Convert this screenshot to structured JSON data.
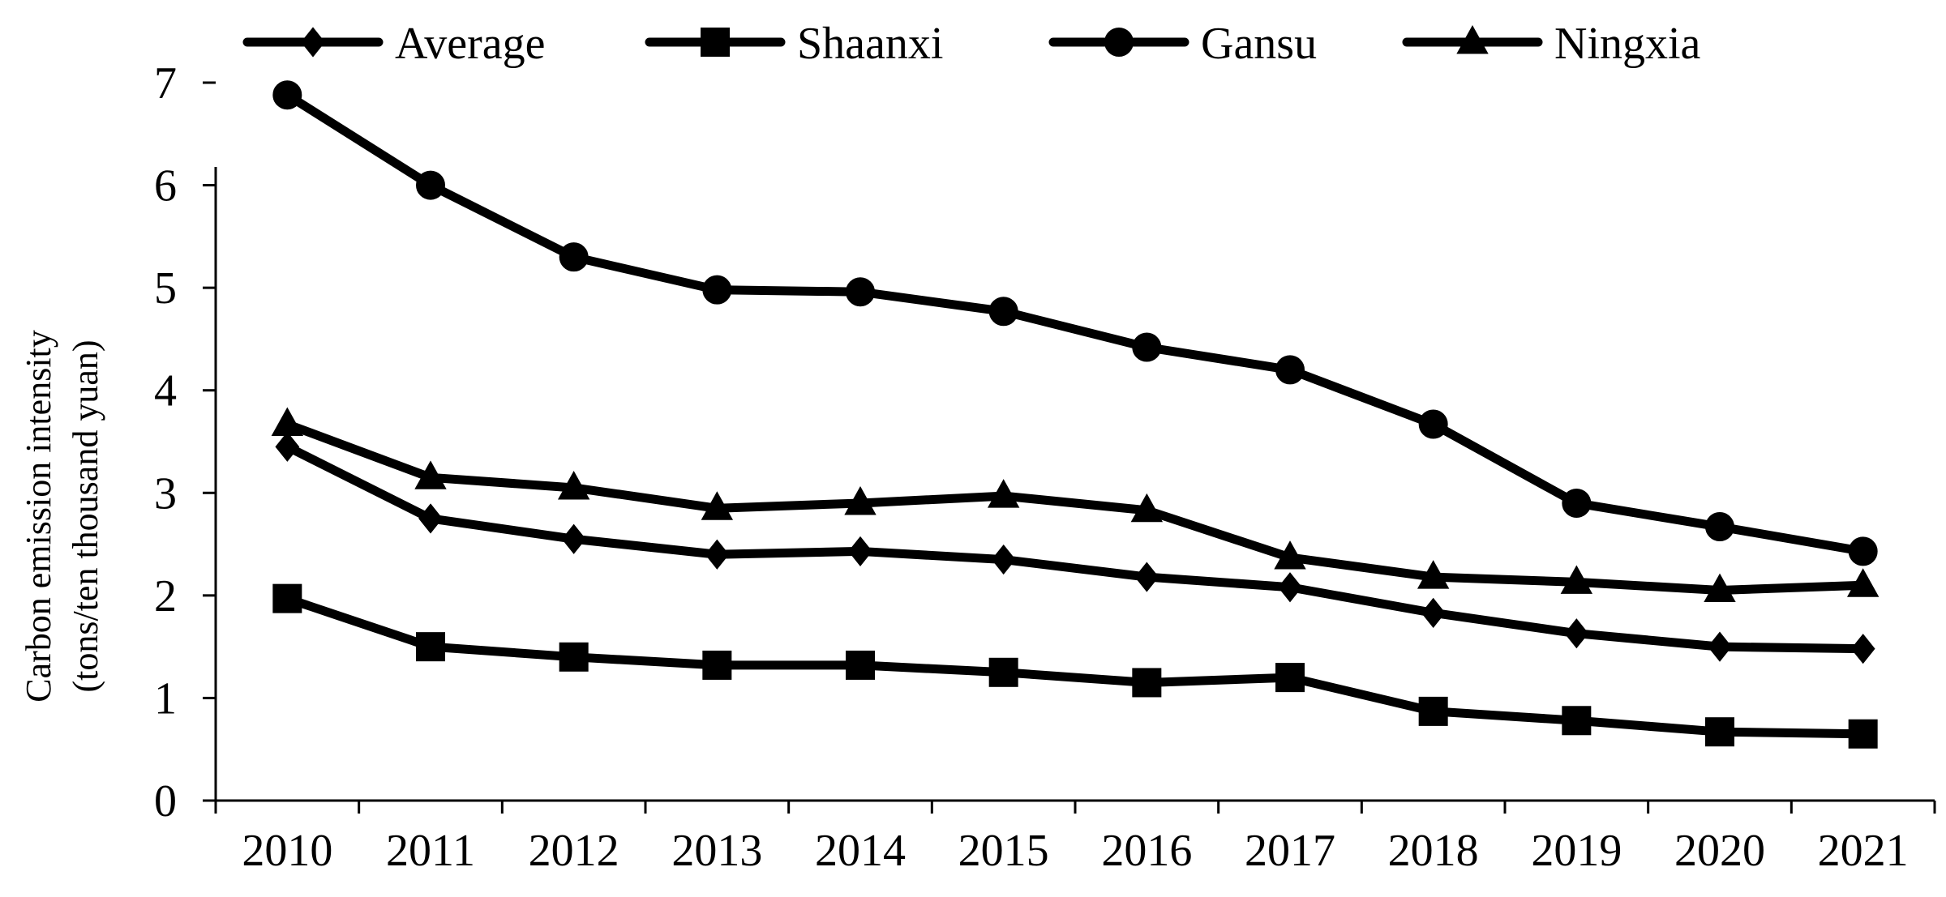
{
  "chart_data": {
    "type": "line",
    "title": "",
    "xlabel": "",
    "ylabel": [
      "Carbon emission intensity",
      "(tons/ten thousand yuan)"
    ],
    "ylim": [
      0,
      7
    ],
    "yticks": [
      0,
      1,
      2,
      3,
      4,
      5,
      6,
      7
    ],
    "categories": [
      "2010",
      "2011",
      "2012",
      "2013",
      "2014",
      "2015",
      "2016",
      "2017",
      "2018",
      "2019",
      "2020",
      "2021"
    ],
    "grid": false,
    "legend_position": "top",
    "series": [
      {
        "name": "Average",
        "marker": "diamond",
        "color": "#000000",
        "values": [
          3.45,
          2.75,
          2.55,
          2.4,
          2.43,
          2.35,
          2.18,
          2.08,
          1.83,
          1.63,
          1.5,
          1.48
        ]
      },
      {
        "name": "Shaanxi",
        "marker": "square",
        "color": "#000000",
        "values": [
          1.97,
          1.5,
          1.4,
          1.32,
          1.32,
          1.25,
          1.15,
          1.2,
          0.87,
          0.78,
          0.67,
          0.65
        ]
      },
      {
        "name": "Gansu",
        "marker": "circle",
        "color": "#000000",
        "values": [
          6.88,
          6.0,
          5.3,
          4.98,
          4.96,
          4.77,
          4.42,
          4.2,
          3.67,
          2.9,
          2.67,
          2.43
        ]
      },
      {
        "name": "Ningxia",
        "marker": "triangle",
        "color": "#000000",
        "values": [
          3.67,
          3.15,
          3.05,
          2.85,
          2.9,
          2.97,
          2.83,
          2.37,
          2.18,
          2.13,
          2.05,
          2.1
        ]
      }
    ]
  }
}
